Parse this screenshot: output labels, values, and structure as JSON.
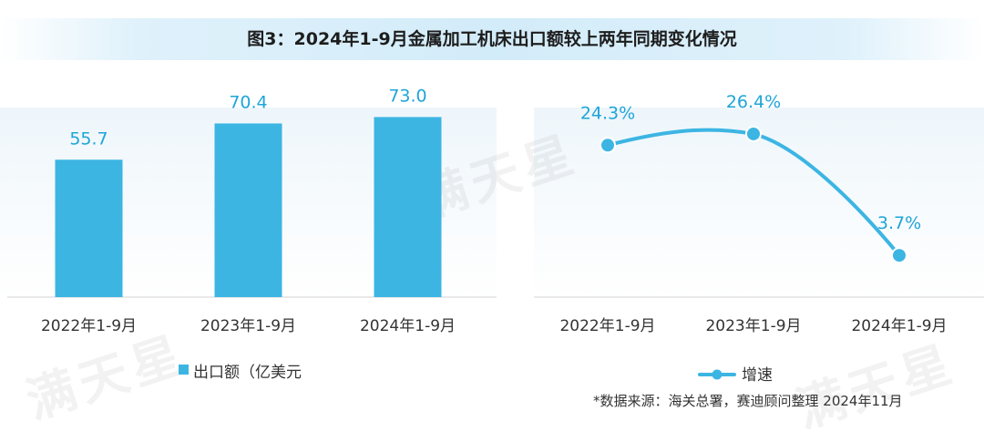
{
  "title": "图3：2024年1-9月金属加工机床出口额较上两年同期变化情况",
  "source": "*数据来源：海关总署，赛迪顾问整理 2024年11月",
  "watermark_text": "满天星",
  "colors": {
    "accent": "#3cb5e3",
    "label": "#1ea5d8"
  },
  "chart_data": [
    {
      "type": "bar",
      "categories": [
        "2022年1-9月",
        "2023年1-9月",
        "2024年1-9月"
      ],
      "series": [
        {
          "name": "出口额（亿美元",
          "values": [
            55.7,
            70.4,
            73.0
          ]
        }
      ],
      "value_labels": [
        "55.7",
        "70.4",
        "73.0"
      ],
      "ylim": [
        0,
        87.2
      ],
      "grid": false,
      "legend_position": "bottom"
    },
    {
      "type": "line",
      "categories": [
        "2022年1-9月",
        "2023年1-9月",
        "2024年1-9月"
      ],
      "series": [
        {
          "name": "增速",
          "values": [
            24.3,
            26.4,
            3.7
          ]
        }
      ],
      "value_labels": [
        "24.3%",
        "26.4%",
        "3.7%"
      ],
      "ylim": [
        -4.1,
        36.1
      ],
      "grid": false,
      "legend_position": "bottom"
    }
  ]
}
